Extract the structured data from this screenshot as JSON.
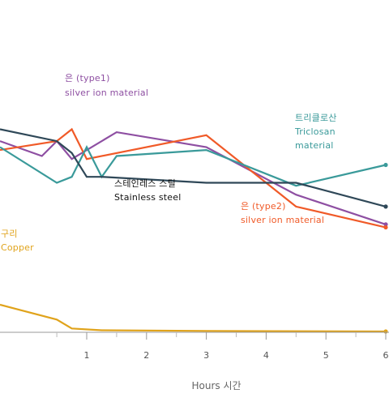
{
  "chart_data": {
    "type": "line",
    "xlabel": "Hours 시간",
    "ylabel": "",
    "xlim": [
      -0.45,
      6
    ],
    "ylim": [
      0,
      5.3
    ],
    "x_ticks": [
      1,
      2,
      3,
      4,
      5,
      6
    ],
    "grid": false,
    "series": [
      {
        "name": "은 (type1)",
        "name2": "silver ion material",
        "color": "#8e4fa2",
        "points": [
          [
            -0.45,
            3.2
          ],
          [
            0.25,
            2.95
          ],
          [
            0.5,
            3.2
          ],
          [
            0.75,
            2.9
          ],
          [
            1.5,
            3.35
          ],
          [
            3.0,
            3.1
          ],
          [
            4.5,
            2.3
          ],
          [
            6.0,
            1.8
          ]
        ]
      },
      {
        "name": "은 (type2)",
        "name2": "silver ion material",
        "color": "#f05a28",
        "points": [
          [
            -0.45,
            3.05
          ],
          [
            0.5,
            3.2
          ],
          [
            0.75,
            3.4
          ],
          [
            1.0,
            2.9
          ],
          [
            3.0,
            3.3
          ],
          [
            4.5,
            2.1
          ],
          [
            6.0,
            1.75
          ]
        ]
      },
      {
        "name": "트리클로산",
        "name2": "Triclosan",
        "name3": "material",
        "color": "#3a9a9a",
        "points": [
          [
            -0.45,
            3.1
          ],
          [
            0.5,
            2.5
          ],
          [
            0.75,
            2.6
          ],
          [
            1.0,
            3.1
          ],
          [
            1.25,
            2.6
          ],
          [
            1.5,
            2.95
          ],
          [
            3.0,
            3.05
          ],
          [
            4.5,
            2.45
          ],
          [
            6.0,
            2.8
          ]
        ]
      },
      {
        "name": "스테인레스 스틸",
        "name2": "Stainless steel",
        "color": "#2f4858",
        "points": [
          [
            -0.45,
            3.4
          ],
          [
            0.5,
            3.2
          ],
          [
            0.75,
            3.0
          ],
          [
            1.0,
            2.6
          ],
          [
            1.25,
            2.6
          ],
          [
            3.0,
            2.5
          ],
          [
            4.5,
            2.5
          ],
          [
            6.0,
            2.1
          ]
        ]
      },
      {
        "name": "구리",
        "name2": "Copper",
        "color": "#e0a31b",
        "points": [
          [
            -0.45,
            0.45
          ],
          [
            0.5,
            0.2
          ],
          [
            0.75,
            0.05
          ],
          [
            1.25,
            0.02
          ],
          [
            3.0,
            0.01
          ],
          [
            6.0,
            0.0
          ]
        ]
      }
    ]
  }
}
